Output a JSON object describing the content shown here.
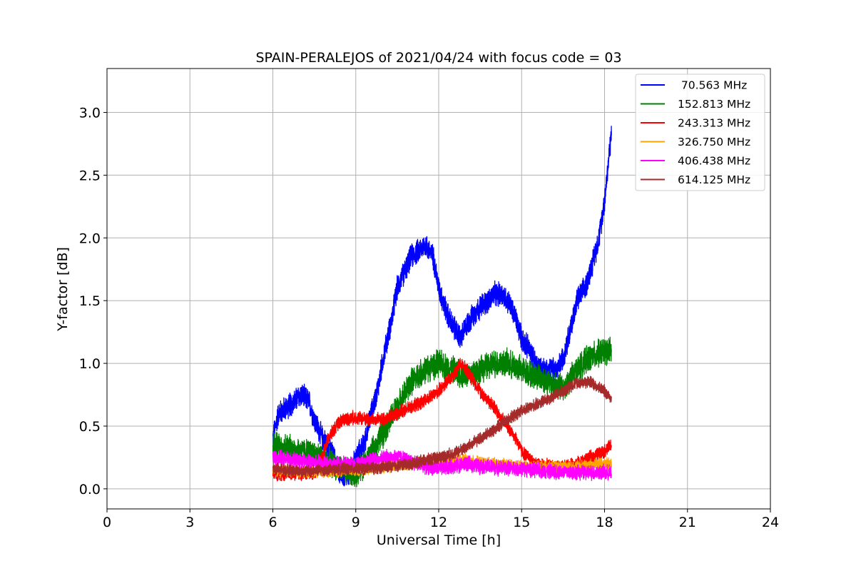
{
  "chart_data": {
    "type": "line",
    "title": "SPAIN-PERALEJOS of 2021/04/24 with focus code = 03",
    "xlabel": "Universal Time [h]",
    "ylabel": "Y-factor [dB]",
    "xlim": [
      0,
      24
    ],
    "ylim": [
      -0.16,
      3.35
    ],
    "xticks": [
      0,
      3,
      6,
      9,
      12,
      15,
      18,
      21,
      24
    ],
    "yticks": [
      0.0,
      0.5,
      1.0,
      1.5,
      2.0,
      2.5,
      3.0
    ],
    "grid": true,
    "legend_position": "top-right",
    "series": [
      {
        "name": " 70.563 MHz",
        "color": "#0000ff",
        "noise": 0.08,
        "x": [
          6.0,
          6.2,
          6.5,
          6.8,
          7.0,
          7.3,
          7.5,
          7.8,
          8.0,
          8.3,
          8.5,
          8.8,
          9.0,
          9.3,
          9.5,
          9.8,
          10.0,
          10.3,
          10.5,
          10.8,
          11.0,
          11.3,
          11.5,
          11.8,
          12.0,
          12.3,
          12.5,
          12.8,
          13.0,
          13.3,
          13.5,
          13.8,
          14.0,
          14.3,
          14.5,
          14.8,
          15.0,
          15.3,
          15.5,
          15.8,
          16.0,
          16.3,
          16.5,
          16.8,
          17.0,
          17.3,
          17.5,
          17.8,
          18.0,
          18.25
        ],
        "y": [
          0.4,
          0.6,
          0.65,
          0.7,
          0.75,
          0.7,
          0.55,
          0.4,
          0.35,
          0.2,
          0.1,
          0.1,
          0.25,
          0.35,
          0.55,
          0.8,
          1.05,
          1.35,
          1.6,
          1.75,
          1.85,
          1.9,
          1.95,
          1.85,
          1.6,
          1.4,
          1.3,
          1.2,
          1.3,
          1.4,
          1.45,
          1.5,
          1.55,
          1.55,
          1.5,
          1.35,
          1.2,
          1.1,
          1.0,
          0.95,
          0.95,
          0.95,
          1.05,
          1.3,
          1.5,
          1.6,
          1.75,
          2.0,
          2.3,
          2.85
        ]
      },
      {
        "name": "152.813 MHz",
        "color": "#008000",
        "noise": 0.09,
        "x": [
          6.0,
          6.5,
          7.0,
          7.5,
          8.0,
          8.5,
          9.0,
          9.5,
          10.0,
          10.5,
          11.0,
          11.5,
          12.0,
          12.5,
          13.0,
          13.5,
          14.0,
          14.5,
          15.0,
          15.5,
          16.0,
          16.5,
          17.0,
          17.5,
          18.0,
          18.25
        ],
        "y": [
          0.35,
          0.33,
          0.3,
          0.28,
          0.22,
          0.15,
          0.12,
          0.25,
          0.45,
          0.65,
          0.85,
          0.95,
          1.0,
          0.95,
          0.9,
          0.95,
          1.0,
          1.0,
          0.95,
          0.9,
          0.85,
          0.8,
          0.95,
          1.05,
          1.1,
          1.1
        ]
      },
      {
        "name": "243.313 MHz",
        "color": "#ff0000",
        "noise": 0.045,
        "x": [
          6.0,
          6.5,
          7.0,
          7.5,
          7.8,
          8.0,
          8.3,
          8.5,
          9.0,
          9.5,
          10.0,
          10.5,
          11.0,
          11.5,
          12.0,
          12.5,
          12.8,
          13.0,
          13.3,
          13.5,
          14.0,
          14.5,
          14.8,
          15.0,
          15.5,
          16.0,
          16.5,
          17.0,
          17.5,
          18.0,
          18.25
        ],
        "y": [
          0.12,
          0.12,
          0.12,
          0.13,
          0.25,
          0.4,
          0.5,
          0.55,
          0.57,
          0.55,
          0.55,
          0.6,
          0.65,
          0.7,
          0.78,
          0.9,
          1.0,
          0.95,
          0.85,
          0.78,
          0.65,
          0.5,
          0.4,
          0.3,
          0.2,
          0.18,
          0.17,
          0.2,
          0.25,
          0.3,
          0.35
        ]
      },
      {
        "name": "326.750 MHz",
        "color": "#ffa500",
        "noise": 0.04,
        "x": [
          6.0,
          7.0,
          8.0,
          9.0,
          10.0,
          11.0,
          12.0,
          13.0,
          14.0,
          15.0,
          16.0,
          17.0,
          18.0,
          18.25
        ],
        "y": [
          0.15,
          0.14,
          0.14,
          0.15,
          0.17,
          0.2,
          0.24,
          0.22,
          0.2,
          0.18,
          0.17,
          0.18,
          0.2,
          0.2
        ]
      },
      {
        "name": "406.438 MHz",
        "color": "#ff00ff",
        "noise": 0.05,
        "x": [
          6.0,
          7.0,
          8.0,
          9.0,
          10.0,
          10.5,
          11.0,
          11.5,
          12.0,
          12.5,
          13.0,
          13.5,
          14.0,
          15.0,
          16.0,
          17.0,
          18.0,
          18.25
        ],
        "y": [
          0.25,
          0.22,
          0.2,
          0.2,
          0.25,
          0.26,
          0.22,
          0.18,
          0.16,
          0.18,
          0.2,
          0.18,
          0.17,
          0.16,
          0.14,
          0.13,
          0.13,
          0.13
        ]
      },
      {
        "name": "614.125 MHz",
        "color": "#a52a2a",
        "noise": 0.04,
        "x": [
          6.0,
          7.0,
          8.0,
          9.0,
          10.0,
          11.0,
          12.0,
          12.5,
          13.0,
          13.5,
          14.0,
          14.5,
          15.0,
          15.5,
          16.0,
          16.5,
          17.0,
          17.5,
          18.0,
          18.25
        ],
        "y": [
          0.16,
          0.14,
          0.15,
          0.16,
          0.17,
          0.2,
          0.25,
          0.28,
          0.33,
          0.4,
          0.47,
          0.55,
          0.62,
          0.67,
          0.72,
          0.78,
          0.85,
          0.85,
          0.78,
          0.72
        ]
      }
    ]
  }
}
